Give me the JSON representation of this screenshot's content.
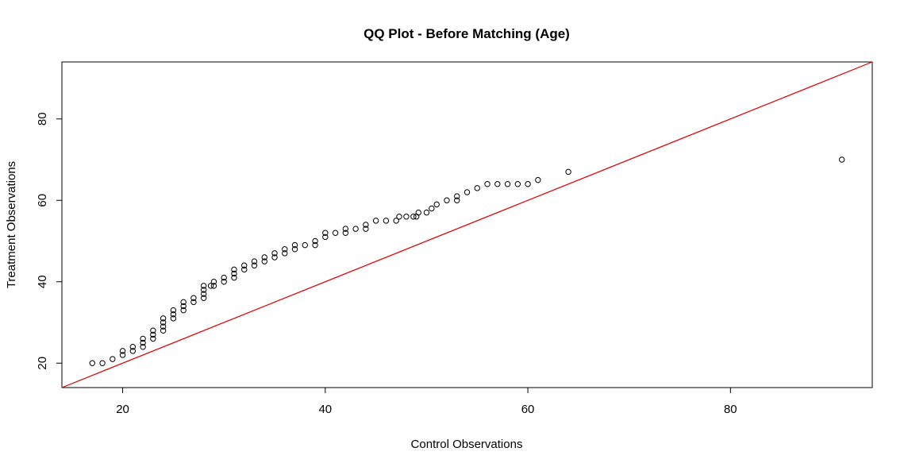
{
  "chart_data": {
    "type": "scatter",
    "title": "QQ Plot - Before Matching (Age)",
    "xlabel": "Control Observations",
    "ylabel": "Treatment Observations",
    "xlim": [
      14,
      94
    ],
    "ylim": [
      14,
      94
    ],
    "x_ticks": [
      "20",
      "40",
      "60",
      "80"
    ],
    "y_ticks": [
      "20",
      "40",
      "60",
      "80"
    ],
    "grid": false,
    "reference_line": {
      "slope": 1,
      "intercept": 0,
      "color": "#e00000"
    },
    "point_color": "#000000",
    "points": [
      [
        17,
        20
      ],
      [
        18,
        20
      ],
      [
        19,
        21
      ],
      [
        20,
        22
      ],
      [
        20,
        23
      ],
      [
        21,
        23
      ],
      [
        21,
        24
      ],
      [
        22,
        24
      ],
      [
        22,
        25
      ],
      [
        22,
        26
      ],
      [
        23,
        26
      ],
      [
        23,
        27
      ],
      [
        23,
        28
      ],
      [
        24,
        28
      ],
      [
        24,
        29
      ],
      [
        24,
        30
      ],
      [
        24,
        31
      ],
      [
        25,
        31
      ],
      [
        25,
        32
      ],
      [
        25,
        33
      ],
      [
        26,
        33
      ],
      [
        26,
        34
      ],
      [
        26,
        35
      ],
      [
        27,
        35
      ],
      [
        27,
        36
      ],
      [
        28,
        36
      ],
      [
        28,
        37
      ],
      [
        28,
        38
      ],
      [
        28,
        39
      ],
      [
        28.7,
        39
      ],
      [
        29,
        39
      ],
      [
        29,
        40
      ],
      [
        30,
        40
      ],
      [
        30,
        41
      ],
      [
        31,
        41
      ],
      [
        31,
        42
      ],
      [
        31,
        43
      ],
      [
        32,
        43
      ],
      [
        32,
        44
      ],
      [
        33,
        44
      ],
      [
        33,
        45
      ],
      [
        34,
        45
      ],
      [
        34,
        46
      ],
      [
        35,
        46
      ],
      [
        35,
        47
      ],
      [
        36,
        47
      ],
      [
        36,
        48
      ],
      [
        37,
        48
      ],
      [
        37,
        49
      ],
      [
        38,
        49
      ],
      [
        39,
        49
      ],
      [
        39,
        50
      ],
      [
        40,
        51
      ],
      [
        40,
        52
      ],
      [
        41,
        52
      ],
      [
        42,
        52
      ],
      [
        42,
        53
      ],
      [
        43,
        53
      ],
      [
        44,
        53
      ],
      [
        44,
        54
      ],
      [
        45,
        55
      ],
      [
        46,
        55
      ],
      [
        47,
        55
      ],
      [
        47.3,
        56
      ],
      [
        48,
        56
      ],
      [
        48.7,
        56
      ],
      [
        49,
        56
      ],
      [
        49.2,
        57
      ],
      [
        50,
        57
      ],
      [
        50.5,
        58
      ],
      [
        51,
        59
      ],
      [
        52,
        60
      ],
      [
        53,
        60
      ],
      [
        53,
        61
      ],
      [
        54,
        62
      ],
      [
        55,
        63
      ],
      [
        56,
        64
      ],
      [
        57,
        64
      ],
      [
        58,
        64
      ],
      [
        59,
        64
      ],
      [
        60,
        64
      ],
      [
        61,
        65
      ],
      [
        64,
        67
      ],
      [
        91,
        70
      ]
    ]
  }
}
